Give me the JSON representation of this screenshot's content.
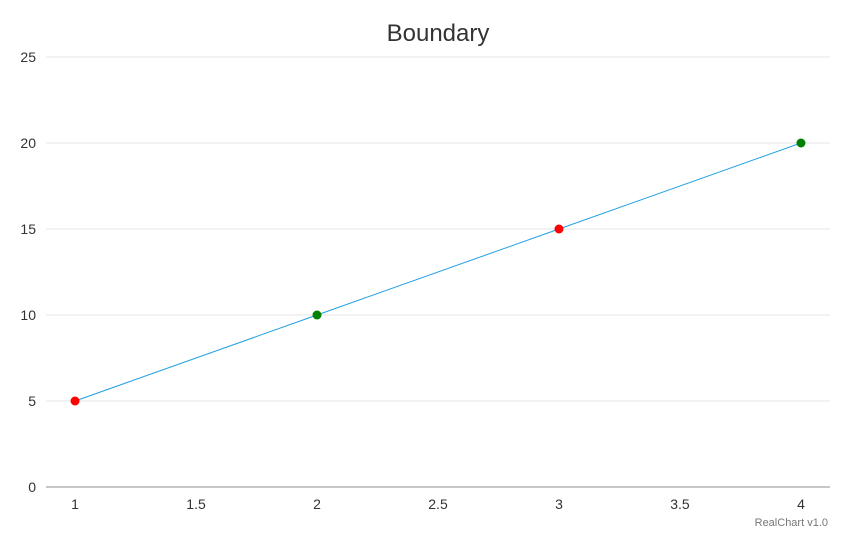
{
  "chart_data": {
    "type": "line",
    "title": "Boundary",
    "xlabel": "",
    "ylabel": "",
    "x_ticks": [
      "1",
      "1.5",
      "2",
      "2.5",
      "3",
      "3.5",
      "4"
    ],
    "y_ticks": [
      "0",
      "5",
      "10",
      "15",
      "20",
      "25"
    ],
    "xlim": [
      0.88,
      4.12
    ],
    "ylim": [
      0,
      25
    ],
    "grid": true,
    "series": [
      {
        "x": [
          1,
          2,
          3,
          4
        ],
        "y": [
          5,
          10,
          15,
          20
        ],
        "line_color": "#1E9FE5",
        "point_colors": [
          "#FF0000",
          "#008000",
          "#FF0000",
          "#008000"
        ]
      }
    ]
  },
  "credit": "RealChart v1.0",
  "colors": {
    "grid": "#E5E5E5",
    "axis": "#C8C8C8",
    "text": "#333333"
  }
}
